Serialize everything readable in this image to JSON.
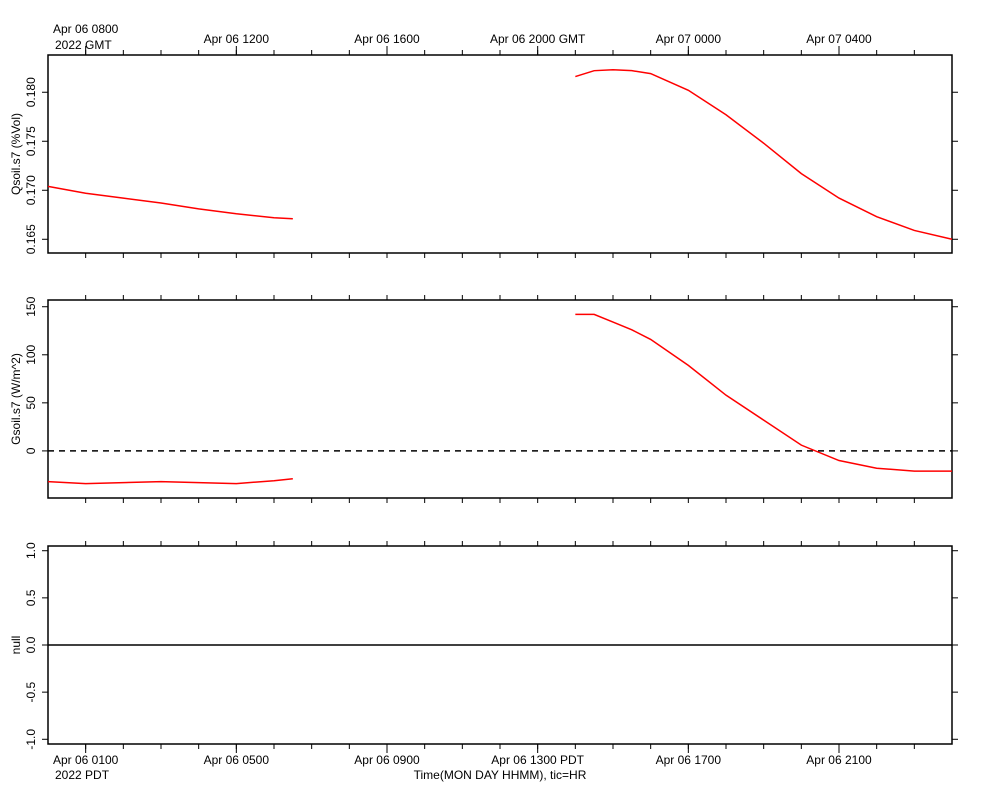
{
  "chart_data": [
    {
      "type": "line",
      "ylabel": "Qsoil.s7 (%Vol)",
      "date_label": "2022 GMT",
      "xlim": [
        0,
        24
      ],
      "xticks": [
        {
          "value": 1,
          "label": "Apr 06 0800"
        },
        {
          "value": 5,
          "label": "Apr 06 1200"
        },
        {
          "value": 9,
          "label": "Apr 06 1600"
        },
        {
          "value": 13,
          "label": "Apr 06 2000 GMT"
        },
        {
          "value": 17,
          "label": "Apr 07 0000"
        },
        {
          "value": 21,
          "label": "Apr 07 0400"
        }
      ],
      "xminorticks": [
        1,
        2,
        3,
        4,
        5,
        6,
        7,
        8,
        9,
        10,
        11,
        12,
        13,
        14,
        15,
        16,
        17,
        18,
        19,
        20,
        21,
        22,
        23
      ],
      "ylim": [
        0.1636,
        0.1838
      ],
      "yticks": [
        0.165,
        {
          "value": 0.17,
          "label": "0.170"
        },
        0.175,
        {
          "value": 0.18,
          "label": "0.180"
        }
      ],
      "x": [
        0,
        1,
        2,
        3,
        4,
        5,
        6,
        6.5,
        10,
        14,
        14.5,
        15,
        15.5,
        16,
        17,
        18,
        19,
        20,
        21,
        22,
        23,
        24
      ],
      "series": [
        {
          "color": "#ff0000",
          "values": [
            0.1704,
            0.1697,
            0.1692,
            0.1687,
            0.1681,
            0.1676,
            0.1672,
            0.1671,
            null,
            0.1816,
            0.1822,
            0.1823,
            0.1822,
            0.1819,
            0.1802,
            0.1777,
            0.1748,
            0.1717,
            0.1692,
            0.1673,
            0.1659,
            0.165
          ]
        }
      ]
    },
    {
      "type": "line",
      "ylabel": "Gsoil.s7 (W/m^2)",
      "xlim": [
        0,
        24
      ],
      "ylim": [
        -49,
        157
      ],
      "yticks": [
        0,
        50,
        100,
        150
      ],
      "zero_line": "dashed",
      "x": [
        0,
        1,
        2,
        3,
        4,
        5,
        6,
        6.5,
        10,
        14,
        14.5,
        15,
        15.5,
        16,
        17,
        18,
        19,
        20,
        21,
        22,
        23,
        24
      ],
      "series": [
        {
          "color": "#ff0000",
          "values": [
            -32,
            -34,
            -33,
            -32,
            -33,
            -34,
            -31,
            -29,
            null,
            142,
            142,
            134,
            126,
            116,
            89,
            58,
            32,
            6,
            -10,
            -18,
            -21,
            -21
          ]
        }
      ]
    },
    {
      "type": "line",
      "ylabel": "null",
      "date_label": "2022 PDT",
      "xlabel": "Time(MON DAY HHMM), tic=HR",
      "xlim": [
        0,
        24
      ],
      "xticks": [
        {
          "value": 1,
          "label": "Apr 06 0100"
        },
        {
          "value": 5,
          "label": "Apr 06 0500"
        },
        {
          "value": 9,
          "label": "Apr 06 0900"
        },
        {
          "value": 13,
          "label": "Apr 06 1300 PDT"
        },
        {
          "value": 17,
          "label": "Apr 06 1700"
        },
        {
          "value": 21,
          "label": "Apr 06 2100"
        }
      ],
      "ylim": [
        -1.05,
        1.05
      ],
      "yticks": [
        {
          "value": -1,
          "label": "-1.0"
        },
        -0.5,
        {
          "value": 0,
          "label": "0.0"
        },
        0.5,
        {
          "value": 1,
          "label": "1.0"
        }
      ],
      "zero_line": "solid"
    }
  ]
}
